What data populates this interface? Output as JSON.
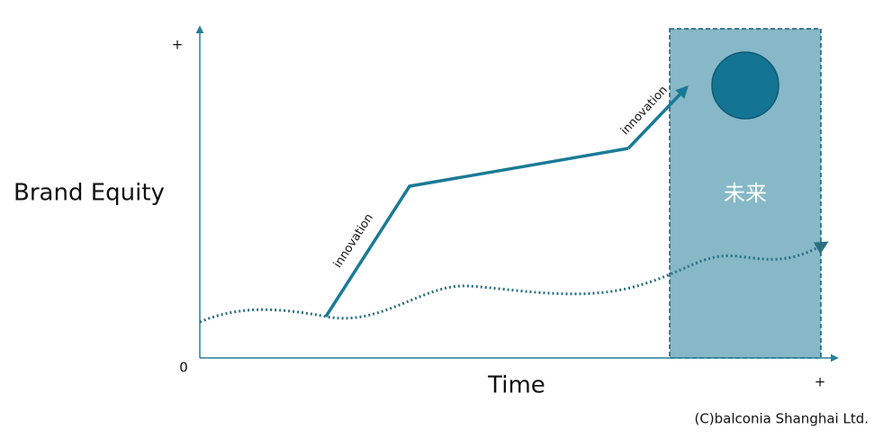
{
  "axes": {
    "y_end": "+",
    "origin": "0",
    "y_label": "Brand Equity",
    "x_label": "Time",
    "x_end": "+"
  },
  "innovations": [
    "innovation",
    "innovation"
  ],
  "future": "未来",
  "footer": "(C)balconia Shanghai Ltd."
}
